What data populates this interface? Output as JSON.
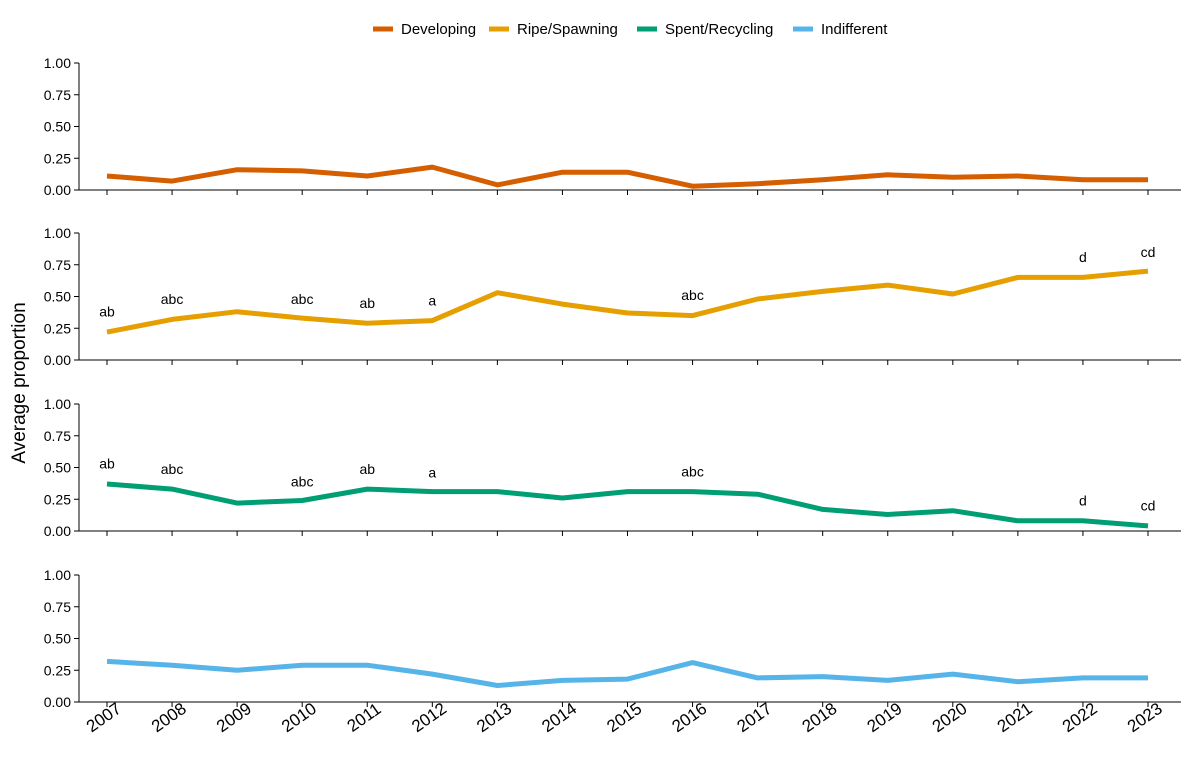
{
  "chart_data": {
    "type": "line",
    "ylabel": "Average proportion",
    "x": [
      "2007",
      "2008",
      "2009",
      "2010",
      "2011",
      "2012",
      "2013",
      "2014",
      "2015",
      "2016",
      "2017",
      "2018",
      "2019",
      "2020",
      "2021",
      "2022",
      "2023"
    ],
    "yticks": [
      "0.00",
      "0.25",
      "0.50",
      "0.75",
      "1.00"
    ],
    "ylim": [
      0,
      1
    ],
    "legend_position": "top",
    "series": [
      {
        "name": "Developing",
        "color": "#D55E00",
        "values": [
          0.11,
          0.07,
          0.16,
          0.15,
          0.11,
          0.18,
          0.04,
          0.14,
          0.14,
          0.03,
          0.05,
          0.08,
          0.12,
          0.1,
          0.11,
          0.08,
          0.08
        ],
        "annotations": []
      },
      {
        "name": "Ripe/Spawning",
        "color": "#E69F00",
        "values": [
          0.22,
          0.32,
          0.38,
          0.33,
          0.29,
          0.31,
          0.53,
          0.44,
          0.37,
          0.35,
          0.48,
          0.54,
          0.59,
          0.52,
          0.65,
          0.65,
          0.7
        ],
        "annotations": [
          {
            "x": "2007",
            "y": 0.38,
            "text": "ab"
          },
          {
            "x": "2008",
            "y": 0.48,
            "text": "abc"
          },
          {
            "x": "2010",
            "y": 0.48,
            "text": "abc"
          },
          {
            "x": "2011",
            "y": 0.45,
            "text": "ab"
          },
          {
            "x": "2012",
            "y": 0.47,
            "text": "a"
          },
          {
            "x": "2016",
            "y": 0.51,
            "text": "abc"
          },
          {
            "x": "2022",
            "y": 0.81,
            "text": "d"
          },
          {
            "x": "2023",
            "y": 0.85,
            "text": "cd"
          }
        ]
      },
      {
        "name": "Spent/Recycling",
        "color": "#009E73",
        "values": [
          0.37,
          0.33,
          0.22,
          0.24,
          0.33,
          0.31,
          0.31,
          0.26,
          0.31,
          0.31,
          0.29,
          0.17,
          0.13,
          0.16,
          0.08,
          0.08,
          0.04
        ],
        "annotations": [
          {
            "x": "2007",
            "y": 0.53,
            "text": "ab"
          },
          {
            "x": "2008",
            "y": 0.49,
            "text": "abc"
          },
          {
            "x": "2010",
            "y": 0.39,
            "text": "abc"
          },
          {
            "x": "2011",
            "y": 0.49,
            "text": "ab"
          },
          {
            "x": "2012",
            "y": 0.46,
            "text": "a"
          },
          {
            "x": "2016",
            "y": 0.47,
            "text": "abc"
          },
          {
            "x": "2022",
            "y": 0.24,
            "text": "d"
          },
          {
            "x": "2023",
            "y": 0.2,
            "text": "cd"
          }
        ]
      },
      {
        "name": "Indifferent",
        "color": "#56B4E9",
        "values": [
          0.32,
          0.29,
          0.25,
          0.29,
          0.29,
          0.22,
          0.13,
          0.17,
          0.18,
          0.31,
          0.19,
          0.2,
          0.17,
          0.22,
          0.16,
          0.19,
          0.19
        ],
        "annotations": []
      }
    ]
  }
}
